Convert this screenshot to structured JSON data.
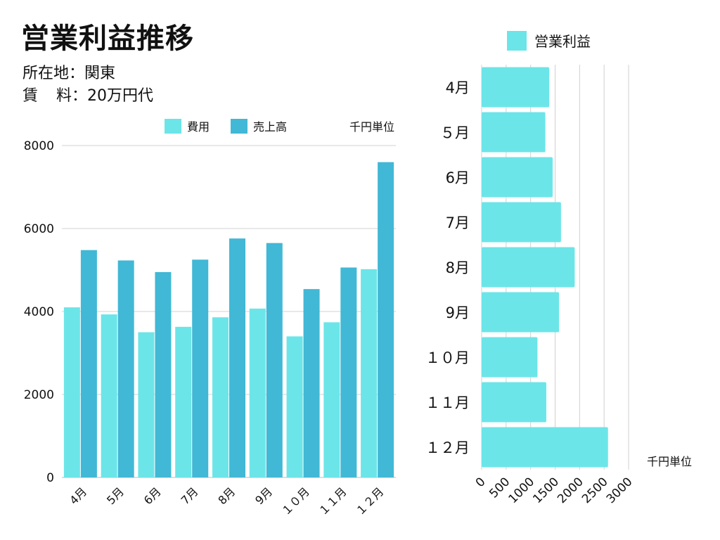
{
  "header": {
    "title": "営業利益推移",
    "location_label": "所在地",
    "location_value": "関東",
    "rent_label_a": "賃",
    "rent_label_b": "料",
    "rent_value": "20万円代",
    "separator": "："
  },
  "colors": {
    "cost": "#6ce5e8",
    "sales": "#41b8d5",
    "profit": "#6ce5e8",
    "grid": "#d0d0d0"
  },
  "chart_data": [
    {
      "type": "bar",
      "title": "",
      "unit_label": "千円単位",
      "categories": [
        "4月",
        "5月",
        "6月",
        "7月",
        "8月",
        "9月",
        "１０月",
        "１１月",
        "１２月"
      ],
      "series": [
        {
          "name": "費用",
          "values": [
            4100,
            3930,
            3500,
            3630,
            3860,
            4070,
            3400,
            3740,
            5020
          ]
        },
        {
          "name": "売上高",
          "values": [
            5480,
            5230,
            4950,
            5250,
            5760,
            5650,
            4540,
            5060,
            7600
          ]
        }
      ],
      "ylim": [
        0,
        8000
      ],
      "yticks": [
        "0",
        "2000",
        "4000",
        "6000",
        "8000"
      ],
      "grid": true,
      "legend": "top"
    },
    {
      "type": "bar",
      "orientation": "horizontal",
      "title": "",
      "unit_label": "千円単位",
      "categories": [
        "4月",
        "５月",
        "6月",
        "7月",
        "8月",
        "9月",
        "１０月",
        "１１月",
        "１２月"
      ],
      "series": [
        {
          "name": "営業利益",
          "values": [
            1380,
            1300,
            1450,
            1620,
            1900,
            1580,
            1140,
            1320,
            2580
          ]
        }
      ],
      "xlim": [
        0,
        3000
      ],
      "xticks": [
        "0",
        "500",
        "1000",
        "1500",
        "2000",
        "2500",
        "3000"
      ],
      "grid": true,
      "legend": "top"
    }
  ]
}
